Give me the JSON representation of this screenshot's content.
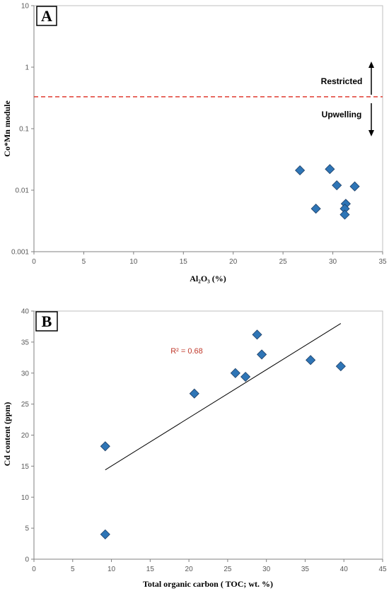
{
  "chart_data": [
    {
      "type": "scatter",
      "panel_label": "A",
      "xlabel": "Al₂O₃ (%)",
      "ylabel": "Co*Mn module",
      "xlim": [
        0,
        35
      ],
      "ylim": [
        0.001,
        10
      ],
      "yscale": "log",
      "x_ticks": [
        "0",
        "5",
        "10",
        "15",
        "20",
        "25",
        "30",
        "35"
      ],
      "y_ticks": [
        "0.001",
        "0.01",
        "0.1",
        "1",
        "10"
      ],
      "grid": false,
      "marker_color": "#2e75b6",
      "series": [
        {
          "points": [
            {
              "x": 26.7,
              "y": 0.021
            },
            {
              "x": 29.7,
              "y": 0.022
            },
            {
              "x": 30.4,
              "y": 0.012
            },
            {
              "x": 32.2,
              "y": 0.0115
            },
            {
              "x": 28.3,
              "y": 0.005
            },
            {
              "x": 31.3,
              "y": 0.006
            },
            {
              "x": 31.2,
              "y": 0.005
            },
            {
              "x": 31.2,
              "y": 0.004
            }
          ]
        }
      ],
      "threshold": {
        "y": 0.33,
        "color": "#e03c31",
        "style": "dashed"
      },
      "annotations": {
        "upper": "Restricted",
        "lower": "Upwelling"
      }
    },
    {
      "type": "scatter",
      "panel_label": "B",
      "xlabel": "Total organic carbon ( TOC; wt. %)",
      "ylabel": "Cd content (ppm)",
      "xlim": [
        0,
        45
      ],
      "ylim": [
        0,
        40
      ],
      "x_ticks": [
        "0",
        "5",
        "10",
        "15",
        "20",
        "25",
        "30",
        "35",
        "40",
        "45"
      ],
      "y_ticks": [
        "0",
        "5",
        "10",
        "15",
        "20",
        "25",
        "30",
        "35",
        "40"
      ],
      "grid": false,
      "marker_color": "#2e75b6",
      "series": [
        {
          "points": [
            {
              "x": 9.2,
              "y": 18.2
            },
            {
              "x": 9.2,
              "y": 4.0
            },
            {
              "x": 20.7,
              "y": 26.7
            },
            {
              "x": 26.0,
              "y": 30.0
            },
            {
              "x": 27.3,
              "y": 29.4
            },
            {
              "x": 28.8,
              "y": 36.2
            },
            {
              "x": 29.4,
              "y": 33.0
            },
            {
              "x": 35.7,
              "y": 32.1
            },
            {
              "x": 39.6,
              "y": 31.1
            }
          ]
        }
      ],
      "trendline": {
        "x": [
          9.2,
          39.6
        ],
        "y": [
          14.4,
          38.0
        ]
      },
      "r2_label": "R² = 0.68",
      "r2_color": "#c0392b"
    }
  ]
}
